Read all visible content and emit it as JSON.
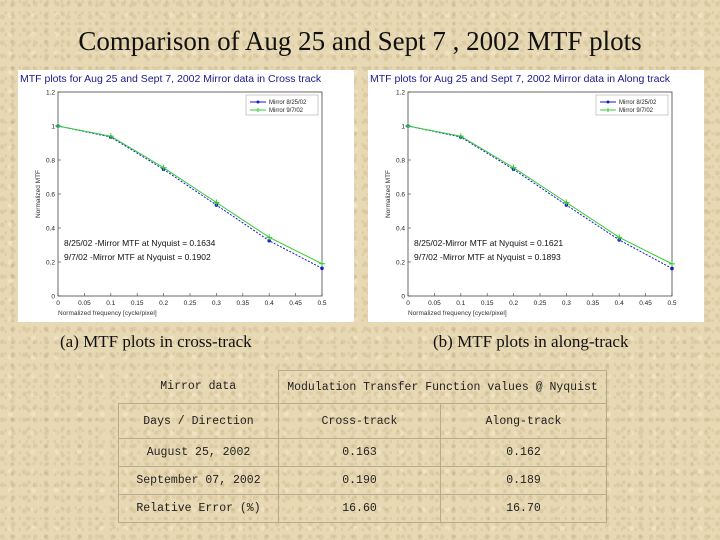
{
  "slide": {
    "title": "Comparison of Aug 25 and Sept 7 , 2002 MTF plots",
    "caption_left": "(a) MTF plots in cross-track",
    "caption_right": "(b) MTF plots in along-track"
  },
  "chart_data": [
    {
      "type": "line",
      "title": "MTF plots for Aug 25 and Sept 7, 2002 Mirror data in Cross track",
      "xlabel": "Normalized frequency [cycle/pixel]",
      "ylabel": "Normalized MTF",
      "xlim": [
        0,
        0.5
      ],
      "ylim": [
        0,
        1.2
      ],
      "x_ticks": [
        "0",
        "0.05",
        "0.1",
        "0.15",
        "0.2",
        "0.25",
        "0.3",
        "0.35",
        "0.4",
        "0.45",
        "0.5"
      ],
      "y_ticks": [
        "0",
        "0.2",
        "0.4",
        "0.6",
        "0.8",
        "1",
        "1.2"
      ],
      "grid": false,
      "legend_position": "top-right",
      "series": [
        {
          "name": "Mirror 8/25/02",
          "color": "#1a1acc",
          "marker": "dot",
          "x": [
            0,
            0.1,
            0.2,
            0.3,
            0.4,
            0.5
          ],
          "y": [
            1.0,
            0.935,
            0.745,
            0.535,
            0.325,
            0.163
          ]
        },
        {
          "name": "Mirror 9/7/02",
          "color": "#33cc33",
          "marker": "plus",
          "x": [
            0,
            0.1,
            0.2,
            0.3,
            0.4,
            0.5
          ],
          "y": [
            1.0,
            0.94,
            0.755,
            0.55,
            0.345,
            0.19
          ]
        }
      ],
      "annotations": [
        "8/25/02 -Mirror MTF at Nyquist = 0.1634",
        "9/7/02 -Mirror MTF at Nyquist = 0.1902"
      ]
    },
    {
      "type": "line",
      "title": "MTF plots for Aug 25 and Sept 7, 2002 Mirror data in Along track",
      "xlabel": "Normalized frequency [cycle/pixel]",
      "ylabel": "Normalized MTF",
      "xlim": [
        0,
        0.5
      ],
      "ylim": [
        0,
        1.2
      ],
      "x_ticks": [
        "0",
        "0.05",
        "0.1",
        "0.15",
        "0.2",
        "0.25",
        "0.3",
        "0.35",
        "0.4",
        "0.45",
        "0.5"
      ],
      "y_ticks": [
        "0",
        "0.2",
        "0.4",
        "0.6",
        "0.8",
        "1",
        "1.2"
      ],
      "grid": false,
      "legend_position": "top-right",
      "series": [
        {
          "name": "Mirror 8/25/02",
          "color": "#1a1acc",
          "marker": "dot",
          "x": [
            0,
            0.1,
            0.2,
            0.3,
            0.4,
            0.5
          ],
          "y": [
            1.0,
            0.935,
            0.745,
            0.535,
            0.33,
            0.162
          ]
        },
        {
          "name": "Mirror 9/7/02",
          "color": "#33cc33",
          "marker": "plus",
          "x": [
            0,
            0.1,
            0.2,
            0.3,
            0.4,
            0.5
          ],
          "y": [
            1.0,
            0.94,
            0.755,
            0.55,
            0.345,
            0.189
          ]
        }
      ],
      "annotations": [
        "8/25/02-Mirror MTF at Nyquist = 0.1621",
        "9/7/02 -Mirror MTF at Nyquist = 0.1893"
      ]
    }
  ],
  "table": {
    "header_left": "Mirror data",
    "header_right": "Modulation Transfer Function values @ Nyquist",
    "sub_left": "Days / Direction",
    "col_cross": "Cross-track",
    "col_along": "Along-track",
    "rows": [
      {
        "label": "August 25, 2002",
        "cross": "0.163",
        "along": "0.162"
      },
      {
        "label": "September 07, 2002",
        "cross": "0.190",
        "along": "0.189"
      },
      {
        "label": "Relative Error (%)",
        "cross": "16.60",
        "along": "16.70"
      }
    ]
  }
}
